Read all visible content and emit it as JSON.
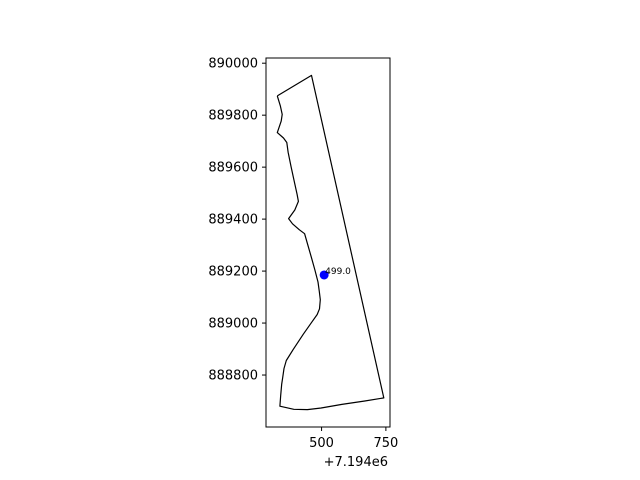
{
  "chart_data": {
    "type": "scatter",
    "title": "",
    "xlabel": "",
    "ylabel": "",
    "x_offset_label": "+7.194e6",
    "xlim": [
      7194284,
      7194766
    ],
    "ylim": [
      888600,
      890020
    ],
    "xticks": [
      {
        "value": 7194500,
        "label": "500"
      },
      {
        "value": 7194750,
        "label": "750"
      }
    ],
    "yticks": [
      {
        "value": 888800,
        "label": "888800"
      },
      {
        "value": 889000,
        "label": "889000"
      },
      {
        "value": 889200,
        "label": "889200"
      },
      {
        "value": 889400,
        "label": "889400"
      },
      {
        "value": 889600,
        "label": "889600"
      },
      {
        "value": 889800,
        "label": "889800"
      },
      {
        "value": 890000,
        "label": "890000"
      }
    ],
    "grid": false,
    "legend": "none",
    "polygon": {
      "color": "#000000",
      "points": [
        [
          7194328,
          889874
        ],
        [
          7194340,
          889835
        ],
        [
          7194347,
          889803
        ],
        [
          7194343,
          889777
        ],
        [
          7194328,
          889733
        ],
        [
          7194352,
          889712
        ],
        [
          7194365,
          889695
        ],
        [
          7194370,
          889658
        ],
        [
          7194381,
          889603
        ],
        [
          7194395,
          889539
        ],
        [
          7194405,
          889495
        ],
        [
          7194410,
          889468
        ],
        [
          7194396,
          889435
        ],
        [
          7194372,
          889402
        ],
        [
          7194387,
          889382
        ],
        [
          7194414,
          889359
        ],
        [
          7194434,
          889344
        ],
        [
          7194446,
          889302
        ],
        [
          7194461,
          889251
        ],
        [
          7194474,
          889204
        ],
        [
          7194486,
          889158
        ],
        [
          7194491,
          889122
        ],
        [
          7194495,
          889090
        ],
        [
          7194492,
          889055
        ],
        [
          7194483,
          889033
        ],
        [
          7194460,
          889001
        ],
        [
          7194429,
          888957
        ],
        [
          7194390,
          888899
        ],
        [
          7194363,
          888856
        ],
        [
          7194354,
          888825
        ],
        [
          7194349,
          888790
        ],
        [
          7194345,
          888765
        ],
        [
          7194341,
          888722
        ],
        [
          7194338,
          888680
        ],
        [
          7194392,
          888668
        ],
        [
          7194445,
          888667
        ],
        [
          7194498,
          888673
        ],
        [
          7194579,
          888687
        ],
        [
          7194668,
          888700
        ],
        [
          7194742,
          888712
        ],
        [
          7194461,
          889953
        ],
        [
          7194328,
          889874
        ]
      ]
    },
    "points": [
      {
        "x": 7194510,
        "y": 889185,
        "label": "499.0",
        "color": "#0000ff"
      }
    ]
  }
}
